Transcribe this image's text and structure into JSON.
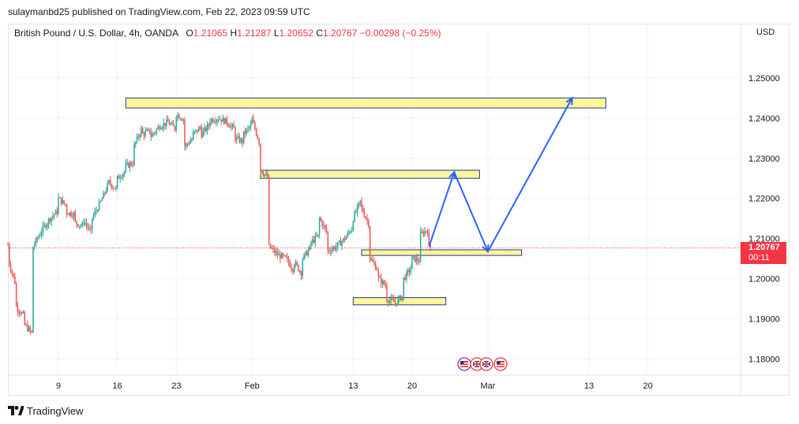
{
  "header": {
    "published_line": "sulaymanbd25 published on TradingView.com, Feb 22, 2023 09:59 UTC"
  },
  "legend": {
    "symbol": "British Pound / U.S. Dollar, 4h, OANDA",
    "o_label": "O",
    "o_value": "1.21065",
    "h_label": "H",
    "h_value": "1.21287",
    "l_label": "L",
    "l_value": "1.20652",
    "c_label": "C",
    "c_value": "1.20767",
    "change": "−0.00298 (−0.25%)"
  },
  "price_tag": {
    "price": "1.20767",
    "countdown": "00:11"
  },
  "footer": {
    "brand": "TradingView"
  },
  "colors": {
    "up": "#26a69a",
    "down": "#ef5350",
    "zone_fill": "#fff59d",
    "zone_stroke": "#1e3a8a",
    "projection": "#2962ff",
    "price_line": "#f23645"
  },
  "icons": [
    "tradingview-logo-icon",
    "us-flag-event-icon",
    "uk-flag-event-icon"
  ],
  "chart_data": {
    "type": "candlestick",
    "symbol": "GBPUSD",
    "timeframe": "4h",
    "currency_label": "USD",
    "y_ticks": [
      1.18,
      1.19,
      1.2,
      1.21,
      1.22,
      1.23,
      1.24,
      1.25
    ],
    "y_tick_labels": [
      "1.18000",
      "1.19000",
      "1.20000",
      "1.21000",
      "1.22000",
      "1.23000",
      "1.24000",
      "1.25000"
    ],
    "ylim": [
      1.176,
      1.2635
    ],
    "x_ticks": [
      {
        "label": "9",
        "date": "2023-01-09"
      },
      {
        "label": "16",
        "date": "2023-01-16"
      },
      {
        "label": "23",
        "date": "2023-01-23"
      },
      {
        "label": "Feb",
        "date": "2023-02-01"
      },
      {
        "label": "13",
        "date": "2023-02-13"
      },
      {
        "label": "20",
        "date": "2023-02-20"
      },
      {
        "label": "Mar",
        "date": "2023-03-01"
      },
      {
        "label": "13",
        "date": "2023-03-13"
      },
      {
        "label": "20",
        "date": "2023-03-20"
      }
    ],
    "xlim": [
      "2023-01-03",
      "2023-03-31"
    ],
    "last_price": 1.20767,
    "price_path": [
      [
        "2023-01-03",
        1.2085
      ],
      [
        "2023-01-03",
        1.205
      ],
      [
        "2023-01-04",
        1.198
      ],
      [
        "2023-01-04",
        1.193
      ],
      [
        "2023-01-05",
        1.1905
      ],
      [
        "2023-01-05",
        1.1885
      ],
      [
        "2023-01-06",
        1.186
      ],
      [
        "2023-01-06",
        1.202
      ],
      [
        "2023-01-06",
        1.208
      ],
      [
        "2023-01-07",
        1.212
      ],
      [
        "2023-01-08",
        1.215
      ],
      [
        "2023-01-09",
        1.217
      ],
      [
        "2023-01-09",
        1.22
      ],
      [
        "2023-01-10",
        1.218
      ],
      [
        "2023-01-10",
        1.2165
      ],
      [
        "2023-01-11",
        1.216
      ],
      [
        "2023-01-11",
        1.214
      ],
      [
        "2023-01-12",
        1.213
      ],
      [
        "2023-01-12",
        1.2145
      ],
      [
        "2023-01-13",
        1.211
      ],
      [
        "2023-01-13",
        1.215
      ],
      [
        "2023-01-14",
        1.219
      ],
      [
        "2023-01-15",
        1.224
      ],
      [
        "2023-01-16",
        1.222
      ],
      [
        "2023-01-16",
        1.225
      ],
      [
        "2023-01-17",
        1.227
      ],
      [
        "2023-01-17",
        1.228
      ],
      [
        "2023-01-18",
        1.229
      ],
      [
        "2023-01-18",
        1.233
      ],
      [
        "2023-01-19",
        1.238
      ],
      [
        "2023-01-19",
        1.236
      ],
      [
        "2023-01-20",
        1.237
      ],
      [
        "2023-01-20",
        1.2355
      ],
      [
        "2023-01-21",
        1.238
      ],
      [
        "2023-01-22",
        1.239
      ],
      [
        "2023-01-23",
        1.237
      ],
      [
        "2023-01-23",
        1.241
      ],
      [
        "2023-01-24",
        1.2395
      ],
      [
        "2023-01-24",
        1.233
      ],
      [
        "2023-01-25",
        1.235
      ],
      [
        "2023-01-25",
        1.236
      ],
      [
        "2023-01-26",
        1.238
      ],
      [
        "2023-01-26",
        1.236
      ],
      [
        "2023-01-27",
        1.2385
      ],
      [
        "2023-01-27",
        1.2395
      ],
      [
        "2023-01-28",
        1.24
      ],
      [
        "2023-01-29",
        1.239
      ],
      [
        "2023-01-30",
        1.237
      ],
      [
        "2023-01-30",
        1.235
      ],
      [
        "2023-01-31",
        1.234
      ],
      [
        "2023-01-31",
        1.236
      ],
      [
        "2023-02-01",
        1.2385
      ],
      [
        "2023-02-01",
        1.2395
      ],
      [
        "2023-02-02",
        1.233
      ],
      [
        "2023-02-02",
        1.227
      ],
      [
        "2023-02-03",
        1.225
      ],
      [
        "2023-02-03",
        1.22
      ],
      [
        "2023-02-03",
        1.208
      ],
      [
        "2023-02-04",
        1.206
      ],
      [
        "2023-02-05",
        1.205
      ],
      [
        "2023-02-06",
        1.202
      ],
      [
        "2023-02-06",
        1.204
      ],
      [
        "2023-02-07",
        1.201
      ],
      [
        "2023-02-07",
        1.205
      ],
      [
        "2023-02-08",
        1.208
      ],
      [
        "2023-02-08",
        1.209
      ],
      [
        "2023-02-09",
        1.211
      ],
      [
        "2023-02-09",
        1.215
      ],
      [
        "2023-02-10",
        1.211
      ],
      [
        "2023-02-10",
        1.207
      ],
      [
        "2023-02-11",
        1.208
      ],
      [
        "2023-02-12",
        1.21
      ],
      [
        "2023-02-13",
        1.213
      ],
      [
        "2023-02-13",
        1.215
      ],
      [
        "2023-02-14",
        1.22
      ],
      [
        "2023-02-14",
        1.2175
      ],
      [
        "2023-02-15",
        1.213
      ],
      [
        "2023-02-15",
        1.205
      ],
      [
        "2023-02-16",
        1.202
      ],
      [
        "2023-02-16",
        1.2
      ],
      [
        "2023-02-17",
        1.198
      ],
      [
        "2023-02-17",
        1.195
      ],
      [
        "2023-02-18",
        1.194
      ],
      [
        "2023-02-19",
        1.196
      ],
      [
        "2023-02-19",
        1.2
      ],
      [
        "2023-02-20",
        1.203
      ],
      [
        "2023-02-20",
        1.205
      ],
      [
        "2023-02-21",
        1.2045
      ],
      [
        "2023-02-21",
        1.206
      ],
      [
        "2023-02-21",
        1.211
      ],
      [
        "2023-02-22",
        1.2125
      ],
      [
        "2023-02-22",
        1.2077
      ]
    ],
    "zones": [
      {
        "from": "2023-01-17",
        "to": "2023-03-15",
        "low": 1.2425,
        "high": 1.245
      },
      {
        "from": "2023-02-02",
        "to": "2023-02-28",
        "low": 1.225,
        "high": 1.227
      },
      {
        "from": "2023-02-14",
        "to": "2023-03-05",
        "low": 1.2058,
        "high": 1.2072
      },
      {
        "from": "2023-02-13",
        "to": "2023-02-24",
        "low": 1.1935,
        "high": 1.1953
      }
    ],
    "projection_path": [
      [
        "2023-02-22",
        1.208
      ],
      [
        "2023-02-25",
        1.2265
      ],
      [
        "2023-03-01",
        1.2068
      ],
      [
        "2023-03-11",
        1.245
      ]
    ]
  }
}
